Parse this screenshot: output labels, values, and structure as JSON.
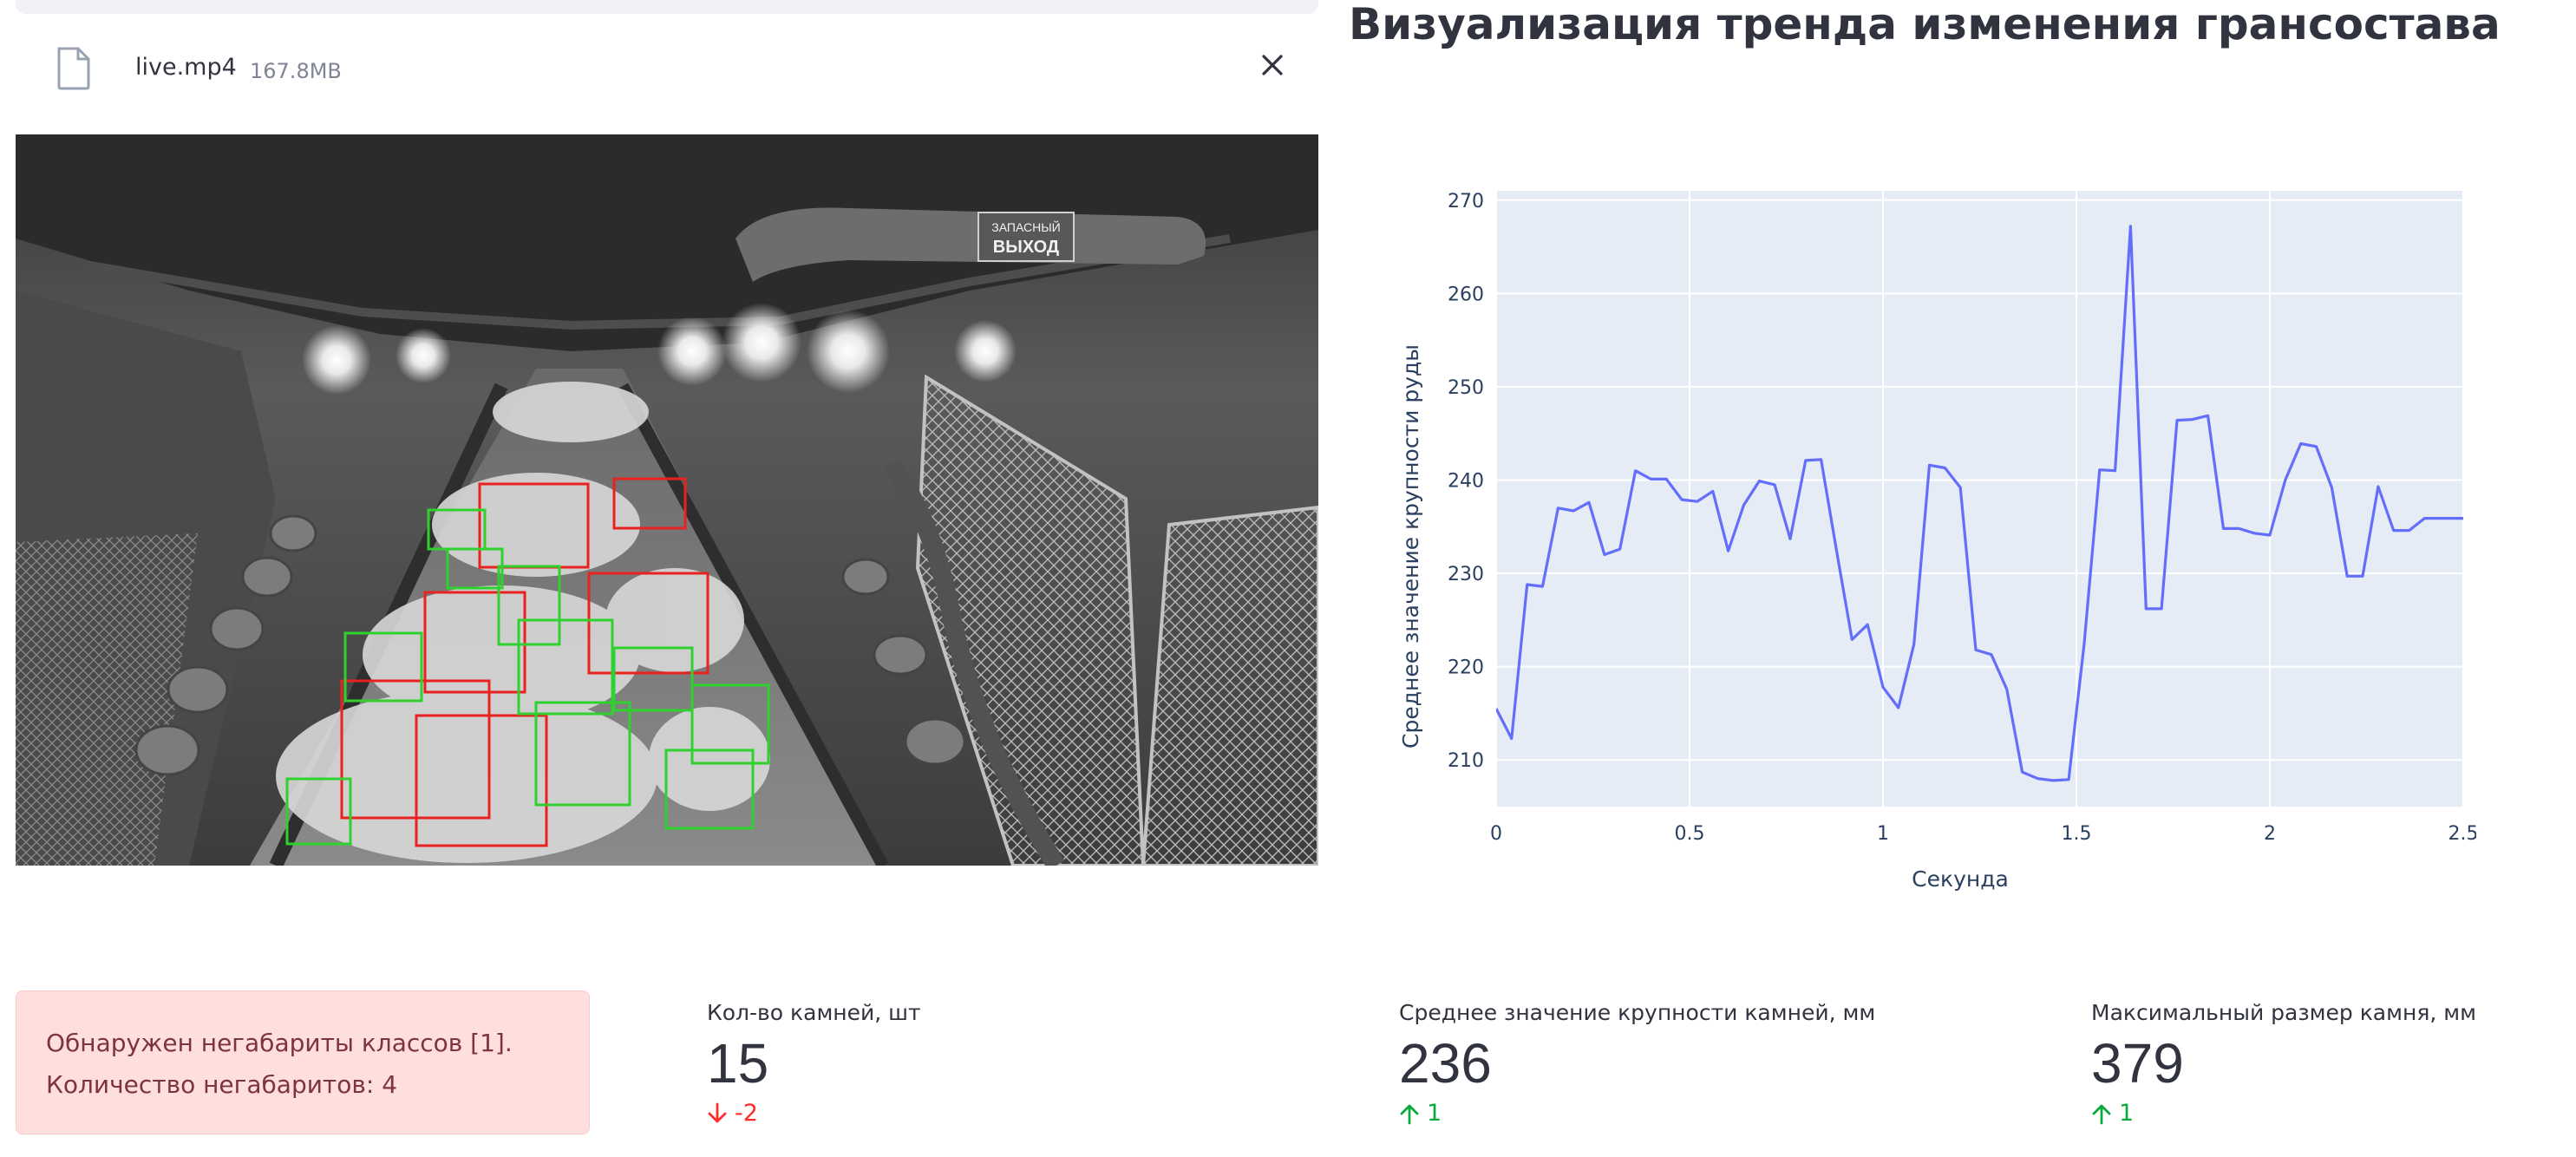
{
  "uploader": {
    "file_name": "live.mp4",
    "file_size": "167.8MB",
    "file_icon": "file-icon",
    "close_icon": "close-icon"
  },
  "video": {
    "exit_sign_line1": "ЗАПАСНЫЙ",
    "exit_sign_line2": "ВЫХОД",
    "box_colors": {
      "oversize": "#e8231f",
      "normal": "#2fd12f"
    }
  },
  "trend": {
    "title": "Визуализация тренда изменения грансостава"
  },
  "chart_data": {
    "type": "line",
    "xlabel": "Секунда",
    "ylabel": "Среднее значение крупности руды",
    "xlim": [
      0,
      2.5
    ],
    "ylim": [
      205,
      271
    ],
    "xticks": [
      0,
      0.5,
      1,
      1.5,
      2,
      2.5
    ],
    "xtick_labels": [
      "0",
      "0.5",
      "1",
      "1.5",
      "2",
      "2.5"
    ],
    "yticks": [
      210,
      220,
      230,
      240,
      250,
      260,
      270
    ],
    "grid": true,
    "line_color": "#636efa",
    "x": [
      0,
      0.04,
      0.08,
      0.12,
      0.16,
      0.2,
      0.24,
      0.28,
      0.32,
      0.36,
      0.4,
      0.44,
      0.48,
      0.52,
      0.56,
      0.6,
      0.64,
      0.68,
      0.72,
      0.76,
      0.8,
      0.84,
      0.88,
      0.92,
      0.96,
      1.0,
      1.04,
      1.08,
      1.12,
      1.16,
      1.2,
      1.24,
      1.28,
      1.32,
      1.36,
      1.4,
      1.44,
      1.48,
      1.52,
      1.56,
      1.6,
      1.64,
      1.68,
      1.72,
      1.76,
      1.8,
      1.84,
      1.88,
      1.92,
      1.96,
      2.0,
      2.04,
      2.08,
      2.12,
      2.16,
      2.2,
      2.24,
      2.28,
      2.32,
      2.36,
      2.4,
      2.44,
      2.48,
      2.52
    ],
    "values": [
      215.5,
      212.3,
      228.8,
      228.6,
      237.0,
      236.7,
      237.6,
      232.0,
      232.6,
      241.0,
      240.1,
      240.1,
      237.9,
      237.7,
      238.8,
      232.4,
      237.3,
      239.9,
      239.5,
      233.7,
      242.1,
      242.2,
      232.4,
      222.9,
      224.5,
      217.8,
      215.6,
      222.4,
      241.6,
      241.3,
      239.2,
      221.8,
      221.3,
      217.6,
      208.7,
      208.0,
      207.8,
      207.9,
      222.4,
      241.1,
      241.0,
      267.2,
      226.2,
      226.2,
      246.4,
      246.5,
      246.9,
      234.8,
      234.8,
      234.3,
      234.1,
      240.0,
      243.9,
      243.6,
      239.2,
      229.7,
      229.7,
      239.3,
      234.6,
      234.6,
      235.9,
      235.9,
      235.9,
      235.9
    ],
    "title": ""
  },
  "alert": {
    "line1": "Обнаружен негабариты классов [1].",
    "line2": "Количество негабаритов: 4",
    "color": "#ffdede"
  },
  "metrics": [
    {
      "label": "Кол-во камней, шт",
      "value": "15",
      "delta": "-2",
      "direction": "down"
    },
    {
      "label": "Среднее значение крупности камней, мм",
      "value": "236",
      "delta": "1",
      "direction": "up"
    },
    {
      "label": "Максимальный размер камня, мм",
      "value": "379",
      "delta": "1",
      "direction": "up"
    }
  ]
}
